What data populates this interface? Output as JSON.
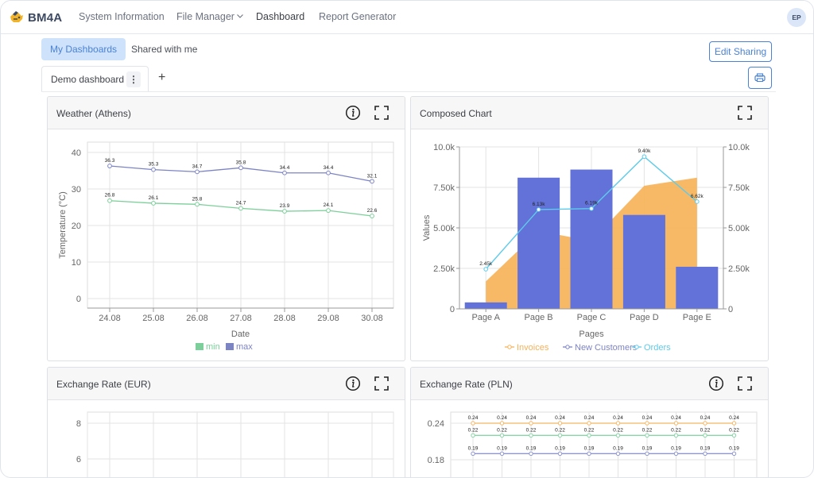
{
  "brand": {
    "name": "BM4A"
  },
  "nav": {
    "items": [
      {
        "label": "System Information"
      },
      {
        "label": "File Manager"
      },
      {
        "label": "Dashboard"
      },
      {
        "label": "Report Generator"
      }
    ]
  },
  "user": {
    "initials": "EP"
  },
  "tabs": {
    "my_dashboards": "My Dashboards",
    "shared_with_me": "Shared with me"
  },
  "toolbar": {
    "edit_sharing": "Edit Sharing",
    "add_tab": "+",
    "kebab": "⋮"
  },
  "dashboard_tab": {
    "label": "Demo dashboard"
  },
  "panels": {
    "weather": {
      "title": "Weather (Athens)"
    },
    "composed": {
      "title": "Composed Chart"
    },
    "eur": {
      "title": "Exchange Rate (EUR)"
    },
    "pln": {
      "title": "Exchange Rate (PLN)"
    }
  },
  "colors": {
    "accent": "#4a82d6",
    "min_series": "#7ccf9a",
    "max_series": "#7d84c4",
    "bars": "#6272d8",
    "area": "#f7b157",
    "orders_line": "#5ecbea",
    "pln_orange": "#f2b765",
    "pln_green": "#86d6a6",
    "pln_blue": "#8f96cf"
  },
  "chart_data": [
    {
      "type": "line",
      "x": [
        "24.08",
        "25.08",
        "26.08",
        "27.08",
        "28.08",
        "29.08",
        "30.08"
      ],
      "series": [
        {
          "name": "min",
          "values": [
            26.8,
            26.1,
            25.8,
            24.7,
            23.9,
            24.1,
            22.6
          ]
        },
        {
          "name": "max",
          "values": [
            36.3,
            35.3,
            34.7,
            35.8,
            34.4,
            34.4,
            32.1
          ]
        }
      ],
      "data_labels": {
        "min": [
          "26.8",
          "26.1",
          "25.8",
          "24.7",
          "23.9",
          "24.1",
          "22.6"
        ],
        "max": [
          "36.3",
          "35.3",
          "34.7",
          "35.8",
          "34.4",
          "34.4",
          "32.1"
        ]
      },
      "xlabel": "Date",
      "ylabel": "Temperature (°C)",
      "ylim": [
        0,
        40
      ],
      "yticks": [
        "0",
        "10",
        "20",
        "30",
        "40"
      ],
      "grid": true,
      "legend": "bottom"
    },
    {
      "type": "bar",
      "categories": [
        "Page A",
        "Page B",
        "Page C",
        "Page D",
        "Page E"
      ],
      "series": [
        {
          "name": "Invoices",
          "kind": "area",
          "values": [
            1700,
            4800,
            4200,
            7600,
            8100
          ]
        },
        {
          "name": "New Customers",
          "kind": "bar",
          "values": [
            400,
            8100,
            8600,
            5800,
            2600
          ]
        },
        {
          "name": "Orders",
          "kind": "line",
          "values": [
            2450,
            6130,
            6190,
            9400,
            6620
          ]
        }
      ],
      "order_labels": [
        "2.45k",
        "6.13k",
        "6.19k",
        "9.40k",
        "6.62k"
      ],
      "xlabel": "Pages",
      "ylabel": "Values",
      "ylim": [
        0,
        10000
      ],
      "yticks_left": [
        "0",
        "2.50k",
        "5.00k",
        "7.50k",
        "10.0k"
      ],
      "yticks_right": [
        "0",
        "2.50k",
        "5.00k",
        "7.50k",
        "10.0k"
      ],
      "grid": true,
      "legend": "bottom"
    },
    {
      "type": "line",
      "ylim": [
        5,
        9
      ],
      "yticks": [
        "6",
        "8"
      ],
      "grid": true
    },
    {
      "type": "line",
      "ylim": [
        0.17,
        0.25
      ],
      "yticks": [
        "0.18",
        "0.24"
      ],
      "series": [
        {
          "values": [
            0.24,
            0.24,
            0.24,
            0.24,
            0.24,
            0.24,
            0.24,
            0.24,
            0.24,
            0.24
          ]
        },
        {
          "values": [
            0.22,
            0.22,
            0.22,
            0.22,
            0.22,
            0.22,
            0.22,
            0.22,
            0.22,
            0.22
          ]
        },
        {
          "values": [
            0.19,
            0.19,
            0.19,
            0.19,
            0.19,
            0.19,
            0.19,
            0.19,
            0.19,
            0.19
          ]
        }
      ],
      "grid": true
    }
  ]
}
